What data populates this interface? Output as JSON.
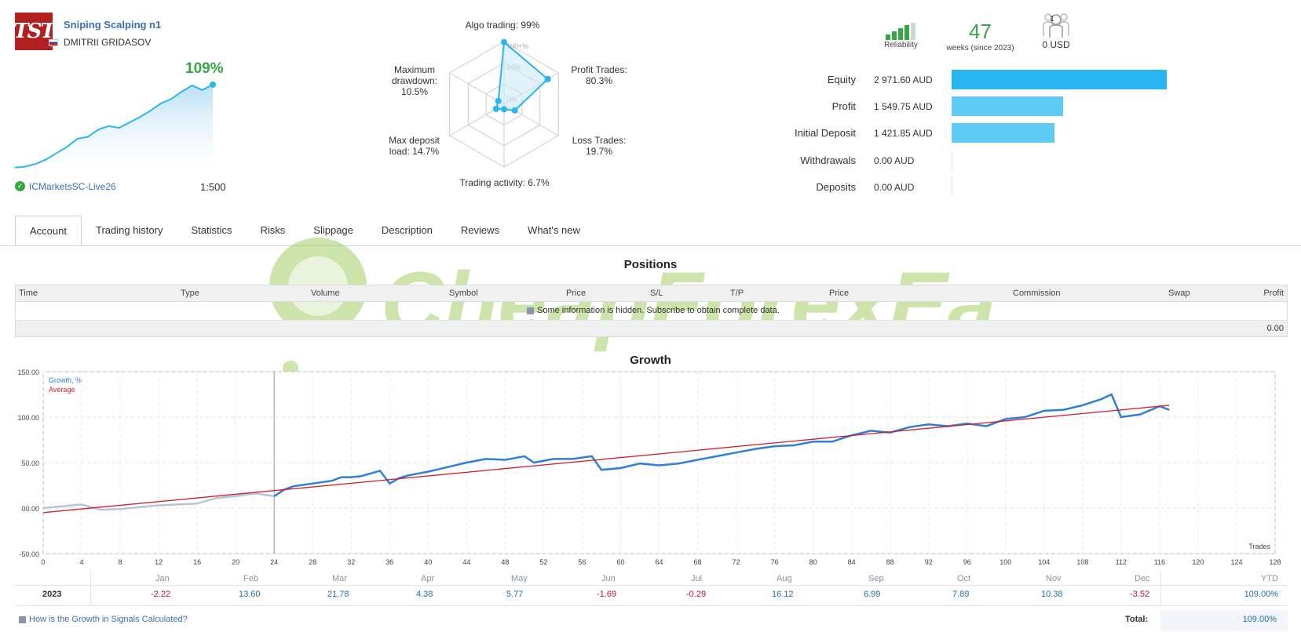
{
  "header": {
    "logo_text": "TST",
    "signal_name": "Sniping Scalping n1",
    "author": "DMITRII GRIDASOV",
    "mini_growth": "109%",
    "mini_growth_curve": [
      2,
      3,
      6,
      11,
      18,
      25,
      34,
      36,
      44,
      48,
      46,
      52,
      58,
      65,
      73,
      78,
      86,
      93,
      88,
      94
    ],
    "broker": "ICMarketsSC-Live26",
    "leverage": "1:500"
  },
  "radar": {
    "labels": {
      "algo": "Algo trading: 99%",
      "profit_trades": "Profit Trades:",
      "profit_trades_val": "80.3%",
      "loss_trades": "Loss Trades:",
      "loss_trades_val": "19.7%",
      "activity": "Trading activity: 6.7%",
      "max_deposit": "Max deposit",
      "max_deposit_val": "load: 14.7%",
      "max_dd": "Maximum",
      "max_dd2": "drawdown:",
      "max_dd_val": "10.5%"
    },
    "rings": [
      "100+%",
      "50%",
      "0%"
    ],
    "values": [
      0.99,
      0.803,
      0.197,
      0.067,
      0.147,
      0.105
    ]
  },
  "metrics": {
    "reliability_label": "Reliability",
    "weeks_value": "47",
    "weeks_label": "weeks (since 2023)",
    "subscribers_count": "1",
    "subscribers_value": "0 USD"
  },
  "stats": [
    {
      "label": "Equity",
      "value": "2 971.60 AUD",
      "fraction": 1.0,
      "color": "#29b6f0"
    },
    {
      "label": "Profit",
      "value": "1 549.75 AUD",
      "fraction": 0.52,
      "color": "#5fcaf3"
    },
    {
      "label": "Initial Deposit",
      "value": "1 421.85 AUD",
      "fraction": 0.478,
      "color": "#5fcaf3"
    },
    {
      "label": "Withdrawals",
      "value": "0.00 AUD",
      "fraction": 0.0,
      "color": "#5fcaf3"
    },
    {
      "label": "Deposits",
      "value": "0.00 AUD",
      "fraction": 0.0,
      "color": "#5fcaf3"
    }
  ],
  "tabs": [
    "Account",
    "Trading history",
    "Statistics",
    "Risks",
    "Slippage",
    "Description",
    "Reviews",
    "What's new"
  ],
  "positions": {
    "title": "Positions",
    "columns": [
      "Time",
      "Type",
      "Volume",
      "Symbol",
      "Price",
      "S/L",
      "T/P",
      "Price",
      "Commission",
      "Swap",
      "Profit"
    ],
    "hidden_note": "Some information is hidden. Subscribe to obtain complete data.",
    "total": "0.00"
  },
  "watermark_text": "CheapForexEa",
  "growth": {
    "title": "Growth",
    "legend_growth": "Growth, %",
    "legend_average": "Average",
    "axis_note": "Trades",
    "y_ticks": [
      "150.00",
      "100.00",
      "50.00",
      "00.00",
      "-50.00"
    ],
    "x_ticks": [
      "0",
      "4",
      "8",
      "12",
      "16",
      "20",
      "24",
      "28",
      "32",
      "36",
      "40",
      "44",
      "48",
      "52",
      "56",
      "60",
      "64",
      "68",
      "72",
      "76",
      "80",
      "84",
      "88",
      "92",
      "96",
      "100",
      "104",
      "108",
      "112",
      "116",
      "120",
      "124",
      "128"
    ]
  },
  "chart_data": {
    "type": "line",
    "title": "Growth",
    "xlabel": "Trades",
    "ylabel": "",
    "xlim": [
      0,
      128
    ],
    "ylim": [
      -50,
      150
    ],
    "series": [
      {
        "name": "Growth, %",
        "x": [
          0,
          2,
          4,
          6,
          8,
          10,
          12,
          14,
          16,
          18,
          20,
          22,
          24,
          25,
          26,
          28,
          30,
          31,
          32,
          33,
          34,
          35,
          36,
          37,
          38,
          40,
          42,
          44,
          46,
          48,
          50,
          51,
          53,
          55,
          57,
          58,
          60,
          62,
          64,
          66,
          68,
          70,
          72,
          74,
          76,
          78,
          80,
          82,
          84,
          86,
          88,
          90,
          92,
          94,
          96,
          98,
          100,
          102,
          104,
          106,
          108,
          110,
          111,
          112,
          114,
          116,
          117
        ],
        "y": [
          0,
          2,
          4,
          -2,
          -1,
          1,
          3,
          4,
          5,
          11,
          13,
          16,
          13,
          20,
          24,
          27,
          30,
          34,
          34,
          35,
          38,
          41,
          27,
          33,
          36,
          40,
          45,
          50,
          54,
          53,
          57,
          50,
          54,
          54,
          57,
          42,
          44,
          49,
          47,
          49,
          53,
          57,
          61,
          65,
          68,
          69,
          73,
          73,
          80,
          85,
          83,
          89,
          92,
          90,
          93,
          90,
          98,
          100,
          107,
          108,
          113,
          120,
          125,
          100,
          103,
          112,
          108
        ]
      },
      {
        "name": "Average",
        "x": [
          0,
          117
        ],
        "y": [
          -5,
          113
        ]
      }
    ]
  },
  "ytd": {
    "months": [
      "Jan",
      "Feb",
      "Mar",
      "Apr",
      "May",
      "Jun",
      "Jul",
      "Aug",
      "Sep",
      "Oct",
      "Nov",
      "Dec",
      "YTD"
    ],
    "year": "2023",
    "values": [
      "-2.22",
      "13.60",
      "21.78",
      "4.38",
      "5.77",
      "-1.69",
      "-0.29",
      "16.12",
      "6.99",
      "7.89",
      "10.38",
      "-3.52",
      "109.00%"
    ],
    "footer_link": "How is the Growth in Signals Calculated?",
    "total_label": "Total:",
    "total_value": "109.00%"
  },
  "colors": {
    "accent_blue": "#29b6f0",
    "link_blue": "#3a6fb4",
    "growth_green": "#35a845",
    "average_red": "#d01f2a",
    "growth_line": "#2f7fd8"
  }
}
